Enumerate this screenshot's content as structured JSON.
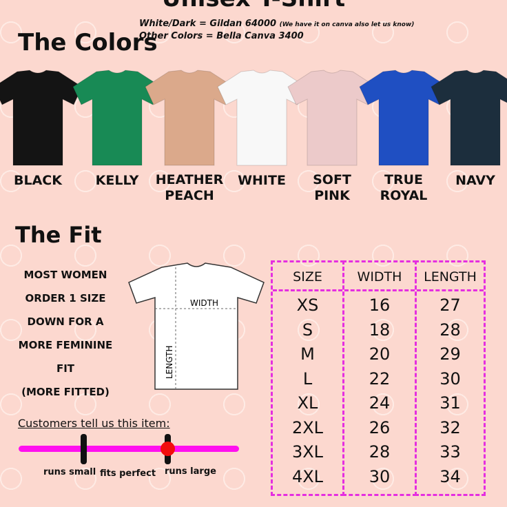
{
  "title": "Unisex T-Shirt",
  "colors_heading": "The Colors",
  "brand_lines": {
    "line1": "White/Dark = Gildan 64000",
    "line1_note": "(We have it on canva also let us know)",
    "line2": "Other Colors = Bella Canva 3400"
  },
  "colors": [
    {
      "name": "BLACK",
      "hex": "#141414"
    },
    {
      "name": "KELLY",
      "hex": "#188a55"
    },
    {
      "name": "HEATHER PEACH",
      "hex": "#dba98b"
    },
    {
      "name": "WHITE",
      "hex": "#f8f8f8"
    },
    {
      "name": "SOFT PINK",
      "hex": "#eccaca"
    },
    {
      "name": "TRUE ROYAL",
      "hex": "#1f4fc2"
    },
    {
      "name": "NAVY",
      "hex": "#1c2e3d"
    }
  ],
  "fit": {
    "heading": "The Fit",
    "note": [
      "MOST WOMEN",
      "ORDER 1 SIZE",
      "DOWN FOR A",
      "MORE FEMININE",
      "FIT",
      "(MORE FITTED)"
    ],
    "width_label": "WIDTH",
    "length_label": "LENGTH"
  },
  "size_chart": {
    "headers": [
      "SIZE",
      "WIDTH",
      "LENGTH"
    ],
    "sizes": [
      "XS",
      "S",
      "M",
      "L",
      "XL",
      "2XL",
      "3XL",
      "4XL"
    ],
    "widths": [
      "16",
      "18",
      "20",
      "22",
      "24",
      "26",
      "28",
      "30"
    ],
    "lengths": [
      "27",
      "28",
      "29",
      "30",
      "31",
      "32",
      "33",
      "34"
    ],
    "border_color": "#e52ee0"
  },
  "customer_fit": {
    "title": "Customers tell us this item:",
    "labels": [
      "runs small",
      "fits perfect",
      "runs large"
    ],
    "indicator_position": "runs large"
  }
}
